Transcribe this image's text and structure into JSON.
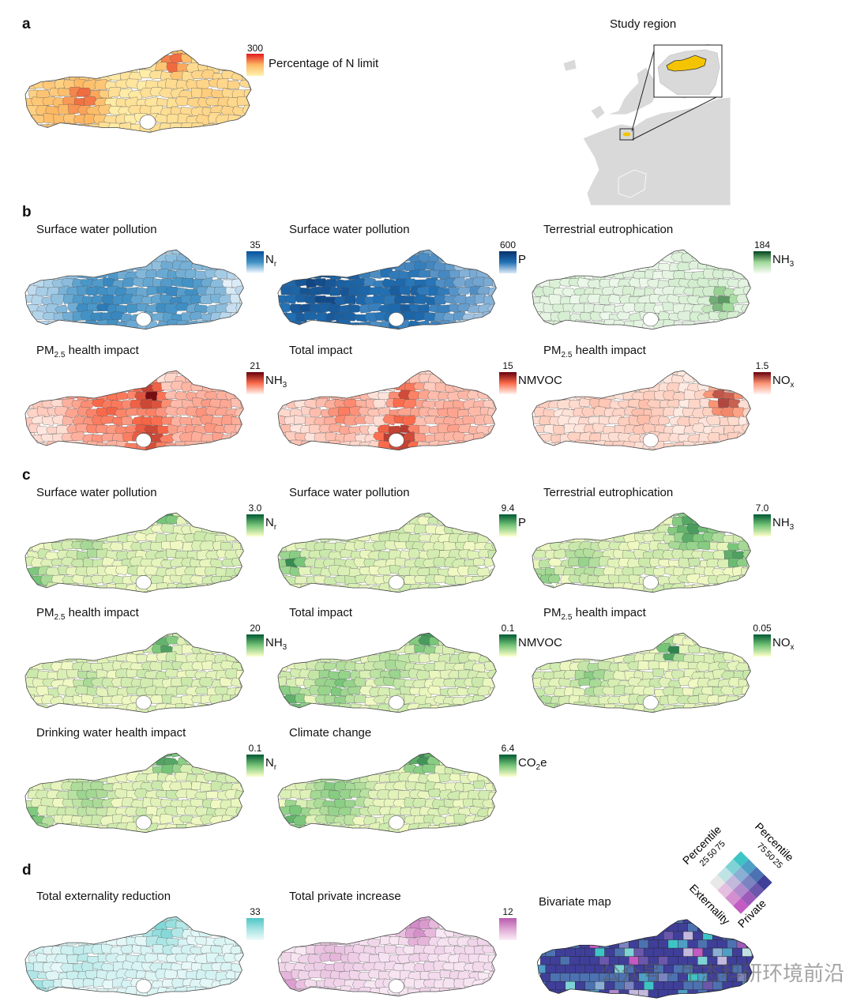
{
  "panels": {
    "a": "a",
    "b": "b",
    "c": "c",
    "d": "d"
  },
  "panel_a": {
    "legend_max": "300",
    "legend_label": "Percentage of N limit",
    "ramp": [
      "#fff3b0",
      "#fdb863",
      "#e31a1c"
    ],
    "study_region_title": "Study region",
    "highlight_color": "#f5c400"
  },
  "maps": [
    {
      "id": "b1",
      "title_pre": "Surface water pollution",
      "title_sub": "",
      "title_post": "",
      "legend_max": "35",
      "label_pre": "N",
      "label_sub": "r",
      "ramp": [
        "#f7fbff",
        "#4292c6",
        "#08519c"
      ]
    },
    {
      "id": "b2",
      "title_pre": "Surface water pollution",
      "title_sub": "",
      "title_post": "",
      "legend_max": "600",
      "label_pre": "P",
      "label_sub": "",
      "ramp": [
        "#deebf7",
        "#2171b5",
        "#08306b"
      ]
    },
    {
      "id": "b3",
      "title_pre": "Terrestrial eutrophication",
      "title_sub": "",
      "title_post": "",
      "legend_max": "184",
      "label_pre": "NH",
      "label_sub": "3",
      "ramp": [
        "#f7fcf5",
        "#a1d99b",
        "#00441b"
      ]
    },
    {
      "id": "b4",
      "title_pre": "PM",
      "title_sub": "2.5",
      "title_post": " health impact",
      "legend_max": "21",
      "label_pre": "NH",
      "label_sub": "3",
      "ramp": [
        "#fff5f0",
        "#fb6a4a",
        "#67000d"
      ]
    },
    {
      "id": "b5",
      "title_pre": "Total impact",
      "title_sub": "",
      "title_post": "",
      "legend_max": "15",
      "label_pre": "NMVOC",
      "label_sub": "",
      "ramp": [
        "#fff5f0",
        "#fb6a4a",
        "#67000d"
      ]
    },
    {
      "id": "b6",
      "title_pre": "PM",
      "title_sub": "2.5",
      "title_post": " health impact",
      "legend_max": "1.5",
      "label_pre": "NO",
      "label_sub": "x",
      "ramp": [
        "#fff5f0",
        "#fc9272",
        "#67000d"
      ]
    },
    {
      "id": "c1",
      "title_pre": "Surface water pollution",
      "title_sub": "",
      "title_post": "",
      "legend_max": "3.0",
      "label_pre": "N",
      "label_sub": "r",
      "ramp": [
        "#ffffcc",
        "#78c679",
        "#005a32"
      ]
    },
    {
      "id": "c2",
      "title_pre": "Surface water pollution",
      "title_sub": "",
      "title_post": "",
      "legend_max": "9.4",
      "label_pre": "P",
      "label_sub": "",
      "ramp": [
        "#ffffcc",
        "#78c679",
        "#005a32"
      ]
    },
    {
      "id": "c3",
      "title_pre": "Terrestrial eutrophication",
      "title_sub": "",
      "title_post": "",
      "legend_max": "7.0",
      "label_pre": "NH",
      "label_sub": "3",
      "ramp": [
        "#ffffcc",
        "#78c679",
        "#005a32"
      ]
    },
    {
      "id": "c4",
      "title_pre": "PM",
      "title_sub": "2.5",
      "title_post": " health impact",
      "legend_max": "20",
      "label_pre": "NH",
      "label_sub": "3",
      "ramp": [
        "#ffffcc",
        "#78c679",
        "#005a32"
      ]
    },
    {
      "id": "c5",
      "title_pre": "Total impact",
      "title_sub": "",
      "title_post": "",
      "legend_max": "0.1",
      "label_pre": "NMVOC",
      "label_sub": "",
      "ramp": [
        "#ffffcc",
        "#78c679",
        "#005a32"
      ]
    },
    {
      "id": "c6",
      "title_pre": "PM",
      "title_sub": "2.5",
      "title_post": " health impact",
      "legend_max": "0.05",
      "label_pre": "NO",
      "label_sub": "x",
      "ramp": [
        "#ffffcc",
        "#78c679",
        "#005a32"
      ]
    },
    {
      "id": "c7",
      "title_pre": "Drinking water health impact",
      "title_sub": "",
      "title_post": "",
      "legend_max": "0.1",
      "label_pre": "N",
      "label_sub": "r",
      "ramp": [
        "#ffffcc",
        "#78c679",
        "#005a32"
      ]
    },
    {
      "id": "c8",
      "title_pre": "Climate change",
      "title_sub": "",
      "title_post": "",
      "legend_max": "6.4",
      "label_pre": "CO",
      "label_sub": "2",
      "label_post": "e",
      "ramp": [
        "#ffffcc",
        "#78c679",
        "#005a32"
      ]
    },
    {
      "id": "d1",
      "title_pre": "Total externality reduction",
      "title_sub": "",
      "title_post": "",
      "legend_max": "33",
      "label_pre": "",
      "label_sub": "",
      "ramp": [
        "#f0fbfb",
        "#a6e3e3",
        "#4fc6c6"
      ]
    },
    {
      "id": "d2",
      "title_pre": "Total private increase",
      "title_sub": "",
      "title_post": "",
      "legend_max": "12",
      "label_pre": "",
      "label_sub": "",
      "ramp": [
        "#fbf0f7",
        "#e0a8d4",
        "#b85bb0"
      ]
    }
  ],
  "bivariate": {
    "title": "Bivariate map",
    "axis_left": "Percentile",
    "axis_right": "Percentile",
    "axis_bottom_left": "Externality",
    "axis_bottom_right": "Private",
    "ticks_left": [
      "75",
      "50",
      "25"
    ],
    "ticks_right": [
      "75",
      "50",
      "25"
    ],
    "grid_colors": [
      [
        "#e8e8e8",
        "#e4bfe0",
        "#d38fd0",
        "#c25bc2"
      ],
      [
        "#bfe3e5",
        "#c2b9dd",
        "#b08acd",
        "#9d5ab9"
      ],
      [
        "#7fd3d6",
        "#8aaed4",
        "#7b84c0",
        "#6b57ac"
      ],
      [
        "#3fc4c6",
        "#4f9ec6",
        "#4d72b2",
        "#3f3f9a"
      ]
    ]
  },
  "watermark": "公众号 · 生态科研环境前沿"
}
